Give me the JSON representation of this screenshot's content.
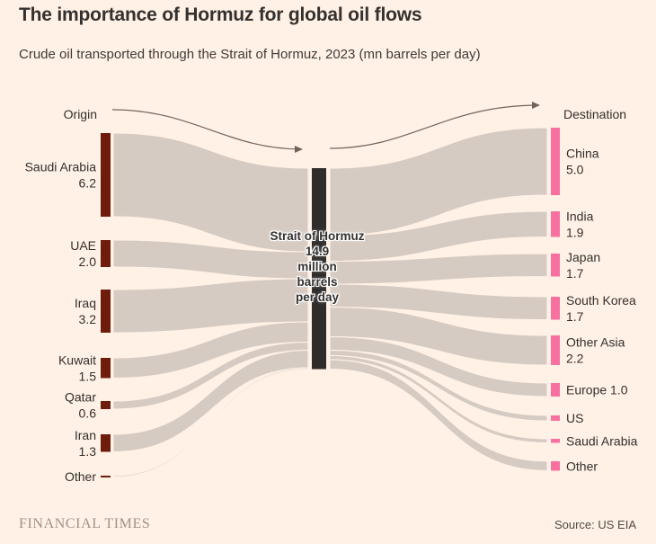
{
  "header": {
    "title": "The importance of Hormuz for global oil flows",
    "subtitle": "Crude oil transported through the Strait of Hormuz, 2023 (mn barrels per day)"
  },
  "diagram": {
    "origin_header": "Origin",
    "destination_header": "Destination"
  },
  "chart_data": {
    "type": "sankey",
    "title": "Crude oil transported through the Strait of Hormuz, 2023",
    "unit": "mn barrels per day",
    "origins": [
      {
        "label": "Saudi Arabia",
        "value": 6.2,
        "value_shown": true
      },
      {
        "label": "UAE",
        "value": 2.0,
        "value_shown": true
      },
      {
        "label": "Iraq",
        "value": 3.2,
        "value_shown": true
      },
      {
        "label": "Kuwait",
        "value": 1.5,
        "value_shown": true
      },
      {
        "label": "Qatar",
        "value": 0.6,
        "value_shown": true
      },
      {
        "label": "Iran",
        "value": 1.3,
        "value_shown": true
      },
      {
        "label": "Other",
        "value": 0.1,
        "value_shown": false,
        "value_estimated": true
      }
    ],
    "strait": {
      "label": "Strait of Hormuz",
      "value": 14.9,
      "value_text_lines": [
        "14.9",
        "million",
        "barrels",
        "per day"
      ]
    },
    "destinations": [
      {
        "label": "China",
        "value": 5.0,
        "value_shown": true
      },
      {
        "label": "India",
        "value": 1.9,
        "value_shown": true
      },
      {
        "label": "Japan",
        "value": 1.7,
        "value_shown": true
      },
      {
        "label": "South Korea",
        "value": 1.7,
        "value_shown": true
      },
      {
        "label": "Other Asia",
        "value": 2.2,
        "value_shown": true
      },
      {
        "label": "Europe",
        "value": 1.0,
        "value_shown": true,
        "inline": true
      },
      {
        "label": "US",
        "value": 0.4,
        "value_shown": false,
        "value_estimated": true
      },
      {
        "label": "Saudi Arabia",
        "value": 0.3,
        "value_shown": false,
        "value_estimated": true
      },
      {
        "label": "Other",
        "value": 0.7,
        "value_shown": false,
        "value_estimated": true
      }
    ]
  },
  "colors": {
    "background": "#fff1e5",
    "origin_bar": "#6e1c0c",
    "destination_bar": "#f8709f",
    "strait_bar": "#2e2d2b",
    "flow": "#d6cbc3",
    "arrow": "#6f645c",
    "text": "#33302e",
    "brand": "#9d9287",
    "source_text": "#4f4a45"
  },
  "footer": {
    "brand": "FINANCIAL TIMES",
    "source": "Source: US EIA"
  }
}
